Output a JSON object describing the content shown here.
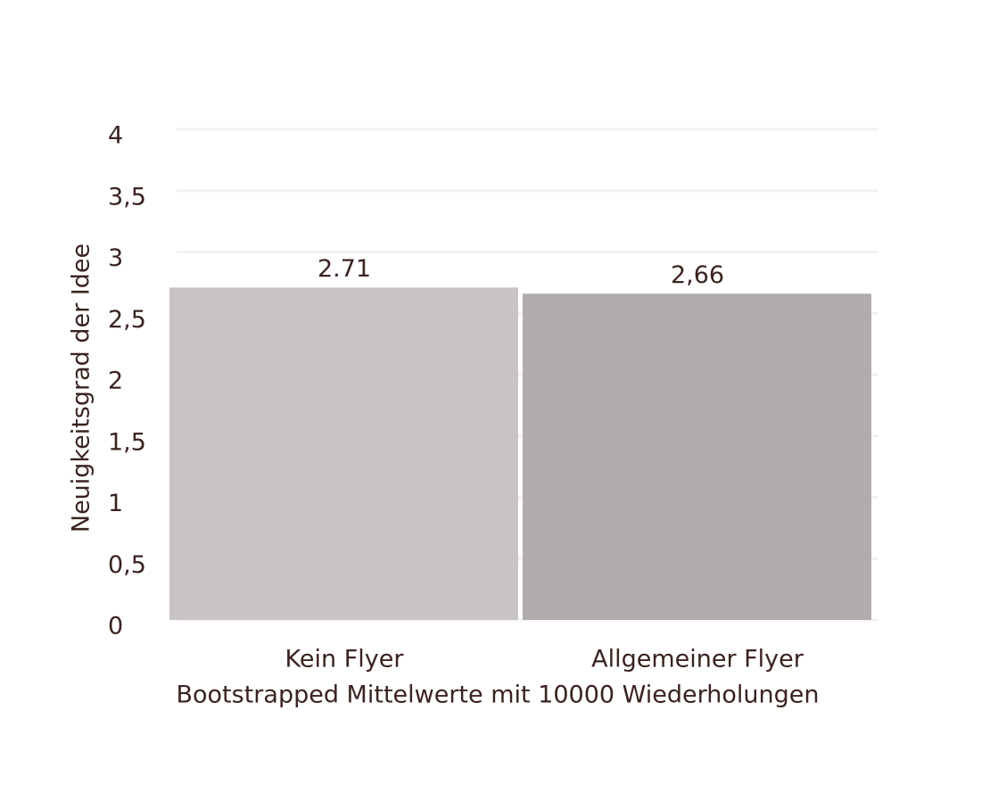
{
  "chart_data": {
    "type": "bar",
    "y_label": "Neuigkeitsgrad der Idee",
    "x_label": "Bootstrapped Mittelwerte mit 10000 Wiederholungen",
    "categories": [
      "Kein Flyer",
      "Allgemeiner Flyer"
    ],
    "values": [
      2.71,
      2.66
    ],
    "value_labels": [
      "2.71",
      "2,66"
    ],
    "colors": [
      "#c8c4c3",
      "#b0acab"
    ],
    "ylim": [
      0,
      4
    ],
    "yticks": [
      0,
      {
        "value": 0.5,
        "label": "0,5"
      },
      1,
      {
        "value": 1.5,
        "label": "1,5"
      },
      2,
      {
        "value": 2.5,
        "label": "2,5"
      },
      3,
      {
        "value": 3.5,
        "label": "3,5"
      },
      4
    ],
    "grid": true
  }
}
